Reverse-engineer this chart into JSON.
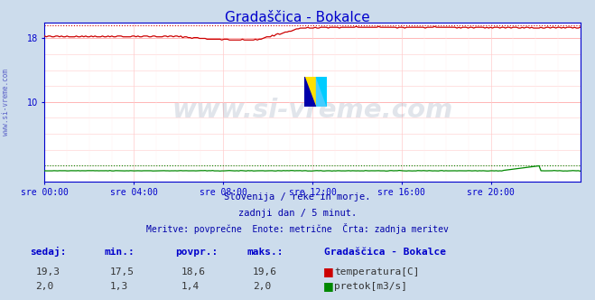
{
  "title": "Gradaščica - Bokalce",
  "title_color": "#0000cc",
  "bg_color": "#ccdcec",
  "plot_bg_color": "#ffffff",
  "x_labels": [
    "sre 00:00",
    "sre 04:00",
    "sre 08:00",
    "sre 12:00",
    "sre 16:00",
    "sre 20:00"
  ],
  "x_ticks": [
    0,
    4,
    8,
    12,
    16,
    20
  ],
  "x_min": 0,
  "x_max": 24,
  "y_min": 0,
  "y_max": 20,
  "y_ticks": [
    10,
    18
  ],
  "temp_color": "#cc0000",
  "flow_color": "#008800",
  "axis_color": "#0000cc",
  "watermark_text": "www.si-vreme.com",
  "watermark_color": "#1a3a6a",
  "watermark_alpha": 0.13,
  "subtitle1": "Slovenija / reke in morje.",
  "subtitle2": "zadnji dan / 5 minut.",
  "subtitle3": "Meritve: povprečne  Enote: metrične  Črta: zadnja meritev",
  "subtitle_color": "#0000aa",
  "table_headers": [
    "sedaj:",
    "min.:",
    "povpr.:",
    "maks.:"
  ],
  "table_color": "#0000cc",
  "station_label": "Gradaščica - Bokalce",
  "temp_row": [
    "19,3",
    "17,5",
    "18,6",
    "19,6"
  ],
  "flow_row": [
    "2,0",
    "1,3",
    "1,4",
    "2,0"
  ],
  "temp_label": "temperatura[C]",
  "flow_label": "pretok[m3/s]",
  "temp_min": 17.5,
  "temp_max": 19.6,
  "temp_avg": 18.6,
  "flow_min": 1.3,
  "flow_max": 2.0,
  "flow_avg": 1.4,
  "ylabel_color": "#0000aa",
  "ylabel_text": "www.si-vreme.com"
}
